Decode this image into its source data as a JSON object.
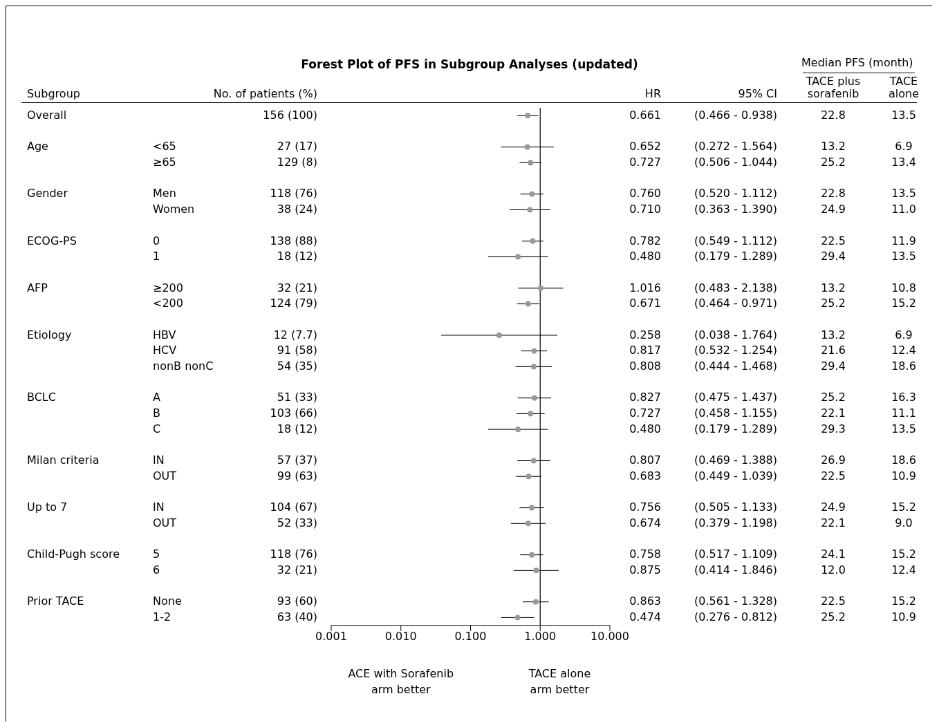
{
  "chart_data": [
    {
      "type": "scatter",
      "title": "Forest Plot of PFS in Subgroup Analyses (updated)",
      "orientation": "horizontal",
      "categories": [
        null,
        null,
        null,
        null,
        null,
        null,
        null,
        null,
        null,
        null,
        null,
        null,
        null,
        null,
        null,
        null,
        null,
        null,
        null,
        null,
        null,
        null,
        null,
        null,
        null,
        null,
        null,
        null,
        null,
        null,
        null,
        null,
        null
      ],
      "series": [
        {
          "color": "#999999",
          "values": [
            0.661,
            null,
            0.652,
            0.727,
            null,
            0.76,
            0.71,
            null,
            0.782,
            0.48,
            null,
            1.016,
            0.671,
            null,
            0.258,
            0.817,
            0.808,
            null,
            0.827,
            0.727,
            0.48,
            null,
            0.807,
            0.683,
            null,
            0.756,
            0.674,
            null,
            0.758,
            0.875,
            null,
            0.863,
            0.474
          ],
          "errors": [
            [
              0.466,
              0.938
            ],
            null,
            [
              0.272,
              1.564
            ],
            [
              0.506,
              1.044
            ],
            null,
            [
              0.52,
              1.112
            ],
            [
              0.363,
              1.39
            ],
            null,
            [
              0.549,
              1.112
            ],
            [
              0.179,
              1.289
            ],
            null,
            [
              0.483,
              2.138
            ],
            [
              0.464,
              0.971
            ],
            null,
            [
              0.038,
              1.764
            ],
            [
              0.532,
              1.254
            ],
            [
              0.444,
              1.468
            ],
            null,
            [
              0.475,
              1.437
            ],
            [
              0.458,
              1.155
            ],
            [
              0.179,
              1.289
            ],
            null,
            [
              0.469,
              1.388
            ],
            [
              0.449,
              1.039
            ],
            null,
            [
              0.505,
              1.133
            ],
            [
              0.379,
              1.198
            ],
            null,
            [
              0.517,
              1.109
            ],
            [
              0.414,
              1.846
            ],
            null,
            [
              0.561,
              1.328
            ],
            [
              0.276,
              0.812
            ]
          ]
        }
      ],
      "log": "x",
      "xlim": [
        0.001,
        10
      ],
      "xticks": [
        {
          "value": 0.001,
          "label": "0.001"
        },
        {
          "value": 0.01,
          "label": "0.010"
        },
        {
          "value": 0.1,
          "label": "0.100"
        },
        {
          "value": 1,
          "label": "1.000"
        },
        {
          "value": 10,
          "label": "10.000"
        }
      ],
      "ref_lines": [
        {
          "axis": "x",
          "value": 1,
          "color": "#000000"
        }
      ],
      "marker": "circle",
      "annotations": [
        "ACE with Sorafenib arm better",
        "TACE alone arm better"
      ]
    },
    {
      "type": "other",
      "subtitle": "Median PFS (month)",
      "categories": [
        "Subgroup",
        null,
        "No. of patients (%)",
        "HR",
        "95% CI",
        "TACE plus sorafenib",
        "TACE alone"
      ],
      "cell_labels": [
        [
          "Overall",
          null,
          "156 (100)",
          "0.661",
          "(0.466 - 0.938)",
          "22.8",
          "13.5"
        ],
        [
          null,
          null,
          null,
          null,
          null,
          null,
          null
        ],
        [
          "Age",
          "<65",
          "27 (17)",
          "0.652",
          "(0.272 - 1.564)",
          "13.2",
          "6.9"
        ],
        [
          null,
          "≥65",
          "129 (8)",
          "0.727",
          "(0.506 - 1.044)",
          "25.2",
          "13.4"
        ],
        [
          null,
          null,
          null,
          null,
          null,
          null,
          null
        ],
        [
          "Gender",
          "Men",
          "118 (76)",
          "0.760",
          "(0.520 - 1.112)",
          "22.8",
          "13.5"
        ],
        [
          null,
          "Women",
          "38 (24)",
          "0.710",
          "(0.363 - 1.390)",
          "24.9",
          "11.0"
        ],
        [
          null,
          null,
          null,
          null,
          null,
          null,
          null
        ],
        [
          "ECOG-PS",
          "0",
          "138 (88)",
          "0.782",
          "(0.549 - 1.112)",
          "22.5",
          "11.9"
        ],
        [
          null,
          "1",
          "18 (12)",
          "0.480",
          "(0.179 - 1.289)",
          "29.4",
          "13.5"
        ],
        [
          null,
          null,
          null,
          null,
          null,
          null,
          null
        ],
        [
          "AFP",
          "≥200",
          "32 (21)",
          "1.016",
          "(0.483 - 2.138)",
          "13.2",
          "10.8"
        ],
        [
          null,
          "<200",
          "124 (79)",
          "0.671",
          "(0.464 - 0.971)",
          "25.2",
          "15.2"
        ],
        [
          null,
          null,
          null,
          null,
          null,
          null,
          null
        ],
        [
          "Etiology",
          "HBV",
          "12 (7.7)",
          "0.258",
          "(0.038 - 1.764)",
          "13.2",
          "6.9"
        ],
        [
          null,
          "HCV",
          "91 (58)",
          "0.817",
          "(0.532 - 1.254)",
          "21.6",
          "12.4"
        ],
        [
          null,
          "nonB nonC",
          "54 (35)",
          "0.808",
          "(0.444 - 1.468)",
          "29.4",
          "18.6"
        ],
        [
          null,
          null,
          null,
          null,
          null,
          null,
          null
        ],
        [
          "BCLC",
          "A",
          "51 (33)",
          "0.827",
          "(0.475 - 1.437)",
          "25.2",
          "16.3"
        ],
        [
          null,
          "B",
          "103 (66)",
          "0.727",
          "(0.458 - 1.155)",
          "22.1",
          "11.1"
        ],
        [
          null,
          "C",
          "18 (12)",
          "0.480",
          "(0.179 - 1.289)",
          "29.3",
          "13.5"
        ],
        [
          null,
          null,
          null,
          null,
          null,
          null,
          null
        ],
        [
          "Milan criteria",
          "IN",
          "57 (37)",
          "0.807",
          "(0.469 - 1.388)",
          "26.9",
          "18.6"
        ],
        [
          null,
          "OUT",
          "99 (63)",
          "0.683",
          "(0.449 - 1.039)",
          "22.5",
          "10.9"
        ],
        [
          null,
          null,
          null,
          null,
          null,
          null,
          null
        ],
        [
          "Up to 7",
          "IN",
          "104 (67)",
          "0.756",
          "(0.505 - 1.133)",
          "24.9",
          "15.2"
        ],
        [
          null,
          "OUT",
          "52 (33)",
          "0.674",
          "(0.379 - 1.198)",
          "22.1",
          "9.0"
        ],
        [
          null,
          null,
          null,
          null,
          null,
          null,
          null
        ],
        [
          "Child-Pugh score",
          "5",
          "118 (76)",
          "0.758",
          "(0.517 - 1.109)",
          "24.1",
          "15.2"
        ],
        [
          null,
          "6",
          "32 (21)",
          "0.875",
          "(0.414 - 1.846)",
          "12.0",
          "12.4"
        ],
        [
          null,
          null,
          null,
          null,
          null,
          null,
          null
        ],
        [
          "Prior TACE",
          "None",
          "93 (60)",
          "0.863",
          "(0.561 - 1.328)",
          "22.5",
          "15.2"
        ],
        [
          null,
          "1-2",
          "63 (40)",
          "0.474",
          "(0.276 - 0.812)",
          "25.2",
          "10.9"
        ]
      ]
    }
  ]
}
